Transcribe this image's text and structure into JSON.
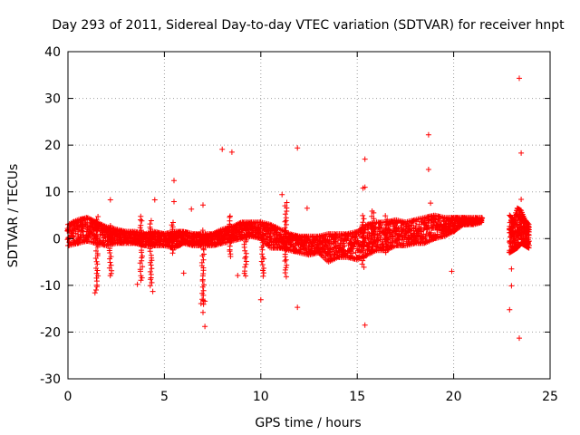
{
  "chart_data": {
    "type": "scatter",
    "title": "Day 293 of 2011, Sidereal Day-to-day VTEC variation (SDTVAR) for receiver hnpt",
    "xlabel": "GPS time / hours",
    "ylabel": "SDTVAR / TECUs",
    "xlim": [
      0,
      25
    ],
    "ylim": [
      -30,
      40
    ],
    "x_ticks": [
      0,
      5,
      10,
      15,
      20,
      25
    ],
    "y_ticks": [
      -30,
      -20,
      -10,
      0,
      10,
      20,
      30,
      40
    ],
    "x_tick_labels": [
      "0",
      "5",
      "10",
      "15",
      "20",
      "25"
    ],
    "y_tick_labels": [
      "-30",
      "-20",
      "-10",
      "0",
      "10",
      "20",
      "30",
      "40"
    ],
    "grid": true,
    "marker": "+",
    "color": "#ff0000",
    "series": [
      {
        "name": "SDTVAR",
        "band": {
          "x": [
            0.0,
            0.5,
            1.0,
            1.5,
            2.0,
            2.5,
            3.0,
            3.5,
            4.0,
            4.5,
            5.0,
            5.5,
            6.0,
            6.5,
            7.0,
            7.5,
            8.0,
            8.5,
            9.0,
            9.5,
            10.0,
            10.5,
            11.0,
            11.5,
            12.0,
            12.5,
            13.0,
            13.5,
            14.0,
            14.5,
            15.0,
            15.5,
            16.0,
            16.5,
            17.0,
            17.5,
            18.0,
            18.5,
            19.0,
            19.5,
            20.0,
            20.5,
            21.0,
            21.5
          ],
          "low": [
            -1.5,
            -1.0,
            -0.5,
            -1.0,
            -1.5,
            -1.0,
            -1.0,
            -1.0,
            -1.5,
            -1.5,
            -1.5,
            -2.0,
            -1.0,
            -1.5,
            -1.5,
            -1.5,
            -1.0,
            -0.5,
            0.0,
            0.5,
            0.0,
            -2.0,
            -2.0,
            -2.5,
            -3.0,
            -3.5,
            -3.0,
            -5.0,
            -4.0,
            -4.0,
            -4.5,
            -3.5,
            -2.5,
            -2.5,
            -1.5,
            -1.5,
            -1.0,
            -1.0,
            0.0,
            0.5,
            1.5,
            3.0,
            3.0,
            3.5
          ],
          "high": [
            3.0,
            4.0,
            4.5,
            3.5,
            2.5,
            2.0,
            1.5,
            1.5,
            1.0,
            1.5,
            1.0,
            1.5,
            1.5,
            1.0,
            1.0,
            1.0,
            2.0,
            2.5,
            3.5,
            3.5,
            3.5,
            3.0,
            2.0,
            1.0,
            0.5,
            0.5,
            0.5,
            1.0,
            1.0,
            1.0,
            1.5,
            3.0,
            3.5,
            3.5,
            4.0,
            3.5,
            4.0,
            4.5,
            5.0,
            4.5,
            4.5,
            4.5,
            4.5,
            4.5
          ]
        },
        "band2": {
          "x": [
            22.9,
            23.1,
            23.3,
            23.5,
            23.7,
            23.9
          ],
          "low": [
            -3.0,
            -2.5,
            -2.0,
            -1.0,
            -1.5,
            -2.0
          ],
          "high": [
            5.0,
            4.0,
            6.5,
            6.0,
            4.0,
            3.0
          ]
        },
        "spikes": [
          {
            "x": 1.5,
            "low": -11,
            "high": 5
          },
          {
            "x": 2.2,
            "low": -8,
            "high": 3
          },
          {
            "x": 3.8,
            "low": -9,
            "high": 5
          },
          {
            "x": 4.3,
            "low": -10,
            "high": 4
          },
          {
            "x": 5.4,
            "low": -3,
            "high": 4
          },
          {
            "x": 7.0,
            "low": -14,
            "high": 2
          },
          {
            "x": 8.4,
            "low": -4,
            "high": 5
          },
          {
            "x": 9.2,
            "low": -8,
            "high": 1
          },
          {
            "x": 10.1,
            "low": -8,
            "high": 0
          },
          {
            "x": 11.3,
            "low": -8,
            "high": 8
          },
          {
            "x": 15.3,
            "low": -6,
            "high": 5
          },
          {
            "x": 15.8,
            "low": -3,
            "high": 6
          },
          {
            "x": 16.5,
            "low": -3,
            "high": 5
          }
        ],
        "outliers": [
          {
            "x": 23.4,
            "y": 34.3
          },
          {
            "x": 18.7,
            "y": 22.2
          },
          {
            "x": 8.0,
            "y": 19.1
          },
          {
            "x": 8.5,
            "y": 18.5
          },
          {
            "x": 11.9,
            "y": 19.4
          },
          {
            "x": 23.5,
            "y": 18.3
          },
          {
            "x": 15.4,
            "y": 17.0
          },
          {
            "x": 18.7,
            "y": 14.8
          },
          {
            "x": 5.5,
            "y": 12.4
          },
          {
            "x": 15.4,
            "y": 11.0
          },
          {
            "x": 15.3,
            "y": 10.8
          },
          {
            "x": 11.1,
            "y": 9.4
          },
          {
            "x": 2.2,
            "y": 8.3
          },
          {
            "x": 4.5,
            "y": 8.3
          },
          {
            "x": 5.5,
            "y": 7.9
          },
          {
            "x": 23.5,
            "y": 8.4
          },
          {
            "x": 18.8,
            "y": 7.6
          },
          {
            "x": 12.4,
            "y": 6.5
          },
          {
            "x": 6.4,
            "y": 6.3
          },
          {
            "x": 7.0,
            "y": 7.2
          },
          {
            "x": 19.9,
            "y": -7.0
          },
          {
            "x": 23.0,
            "y": -6.5
          },
          {
            "x": 8.8,
            "y": -7.9
          },
          {
            "x": 6.0,
            "y": -7.4
          },
          {
            "x": 3.6,
            "y": -9.8
          },
          {
            "x": 4.4,
            "y": -11.3
          },
          {
            "x": 1.4,
            "y": -11.6
          },
          {
            "x": 23.0,
            "y": -10.1
          },
          {
            "x": 10.0,
            "y": -13.1
          },
          {
            "x": 7.1,
            "y": -13.4
          },
          {
            "x": 6.9,
            "y": -13.9
          },
          {
            "x": 11.9,
            "y": -14.7
          },
          {
            "x": 22.9,
            "y": -15.2
          },
          {
            "x": 7.0,
            "y": -15.8
          },
          {
            "x": 15.4,
            "y": -18.5
          },
          {
            "x": 7.1,
            "y": -18.8
          },
          {
            "x": 23.4,
            "y": -21.3
          }
        ]
      }
    ]
  }
}
